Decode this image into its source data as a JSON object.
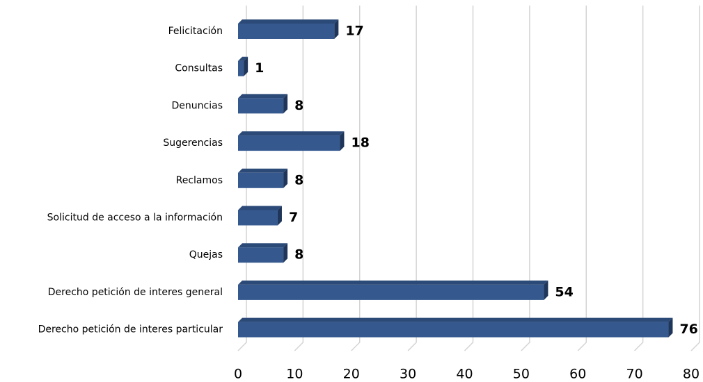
{
  "chart_data": {
    "type": "bar",
    "orientation": "horizontal",
    "categories": [
      "Felicitación",
      "Consultas",
      "Denuncias",
      "Sugerencias",
      "Reclamos",
      "Solicitud de acceso a la información",
      "Quejas",
      "Derecho petición de interes general",
      "Derecho petición de interes particular"
    ],
    "values": [
      17,
      1,
      8,
      18,
      8,
      7,
      8,
      54,
      76
    ],
    "color": "#35598f",
    "xlim": [
      0,
      80
    ],
    "xticks": [
      0,
      10,
      20,
      30,
      40,
      50,
      60,
      70,
      80
    ],
    "grid": true
  }
}
